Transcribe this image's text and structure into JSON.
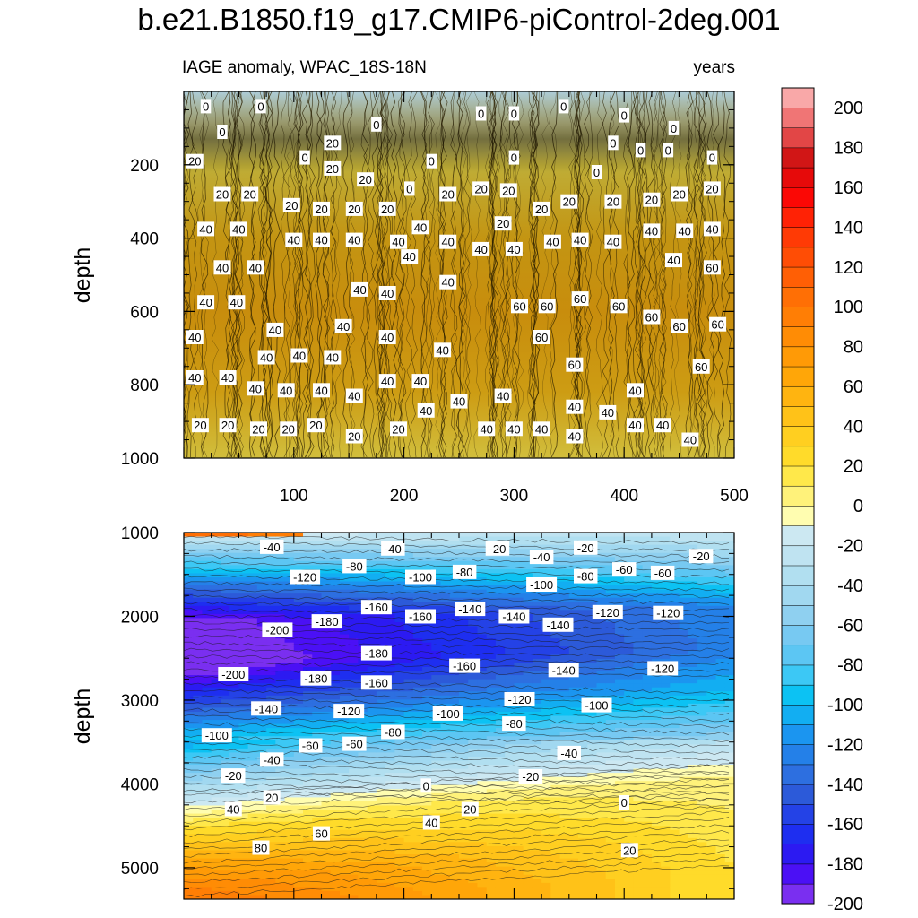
{
  "chart_data": {
    "type": "heatmap",
    "title": "b.e21.B1850.f19_g17.CMIP6-piControl-2deg.001",
    "subtitle_left": "IAGE anomaly, WPAC_18S-18N",
    "subtitle_right": "years",
    "xlabel": "",
    "ylabel": "depth",
    "x_range": [
      0,
      500
    ],
    "x_ticks": [
      "100",
      "200",
      "300",
      "400",
      "500"
    ],
    "panels": [
      {
        "name": "upper",
        "ylim": [
          0,
          1000
        ],
        "y_ticks": [
          "200",
          "400",
          "600",
          "800",
          "1000"
        ],
        "anomaly_profile": {
          "depth": [
            0,
            100,
            200,
            300,
            400,
            500,
            600,
            700,
            800,
            900,
            1000
          ],
          "value": [
            -2,
            2,
            15,
            28,
            38,
            44,
            46,
            45,
            40,
            34,
            26
          ]
        },
        "contour_labels": [
          {
            "text": "0",
            "x": 20,
            "y": 40
          },
          {
            "text": "0",
            "x": 70,
            "y": 40
          },
          {
            "text": "0",
            "x": 35,
            "y": 110
          },
          {
            "text": "0",
            "x": 175,
            "y": 90
          },
          {
            "text": "0",
            "x": 110,
            "y": 180
          },
          {
            "text": "0",
            "x": 270,
            "y": 60
          },
          {
            "text": "0",
            "x": 300,
            "y": 60
          },
          {
            "text": "0",
            "x": 345,
            "y": 40
          },
          {
            "text": "0",
            "x": 400,
            "y": 65
          },
          {
            "text": "0",
            "x": 445,
            "y": 100
          },
          {
            "text": "0",
            "x": 390,
            "y": 140
          },
          {
            "text": "0",
            "x": 415,
            "y": 160
          },
          {
            "text": "0",
            "x": 440,
            "y": 160
          },
          {
            "text": "0",
            "x": 480,
            "y": 180
          },
          {
            "text": "0",
            "x": 225,
            "y": 190
          },
          {
            "text": "0",
            "x": 300,
            "y": 180
          },
          {
            "text": "0",
            "x": 375,
            "y": 220
          },
          {
            "text": "0",
            "x": 205,
            "y": 265
          },
          {
            "text": "20",
            "x": 10,
            "y": 190
          },
          {
            "text": "20",
            "x": 135,
            "y": 140
          },
          {
            "text": "20",
            "x": 135,
            "y": 210
          },
          {
            "text": "20",
            "x": 165,
            "y": 240
          },
          {
            "text": "20",
            "x": 35,
            "y": 280
          },
          {
            "text": "20",
            "x": 60,
            "y": 280
          },
          {
            "text": "20",
            "x": 98,
            "y": 310
          },
          {
            "text": "20",
            "x": 125,
            "y": 320
          },
          {
            "text": "20",
            "x": 155,
            "y": 320
          },
          {
            "text": "20",
            "x": 185,
            "y": 320
          },
          {
            "text": "20",
            "x": 240,
            "y": 280
          },
          {
            "text": "20",
            "x": 270,
            "y": 265
          },
          {
            "text": "20",
            "x": 295,
            "y": 270
          },
          {
            "text": "20",
            "x": 325,
            "y": 320
          },
          {
            "text": "20",
            "x": 350,
            "y": 300
          },
          {
            "text": "20",
            "x": 390,
            "y": 300
          },
          {
            "text": "20",
            "x": 425,
            "y": 295
          },
          {
            "text": "20",
            "x": 450,
            "y": 280
          },
          {
            "text": "20",
            "x": 480,
            "y": 265
          },
          {
            "text": "20",
            "x": 290,
            "y": 360
          },
          {
            "text": "40",
            "x": 20,
            "y": 375
          },
          {
            "text": "40",
            "x": 50,
            "y": 375
          },
          {
            "text": "40",
            "x": 100,
            "y": 405
          },
          {
            "text": "40",
            "x": 125,
            "y": 405
          },
          {
            "text": "40",
            "x": 155,
            "y": 405
          },
          {
            "text": "40",
            "x": 195,
            "y": 410
          },
          {
            "text": "40",
            "x": 215,
            "y": 370
          },
          {
            "text": "40",
            "x": 240,
            "y": 410
          },
          {
            "text": "40",
            "x": 270,
            "y": 430
          },
          {
            "text": "40",
            "x": 300,
            "y": 430
          },
          {
            "text": "40",
            "x": 335,
            "y": 410
          },
          {
            "text": "40",
            "x": 360,
            "y": 405
          },
          {
            "text": "40",
            "x": 390,
            "y": 410
          },
          {
            "text": "40",
            "x": 425,
            "y": 380
          },
          {
            "text": "40",
            "x": 455,
            "y": 380
          },
          {
            "text": "40",
            "x": 480,
            "y": 375
          },
          {
            "text": "40",
            "x": 35,
            "y": 480
          },
          {
            "text": "40",
            "x": 65,
            "y": 480
          },
          {
            "text": "40",
            "x": 205,
            "y": 450
          },
          {
            "text": "40",
            "x": 240,
            "y": 520
          },
          {
            "text": "40",
            "x": 160,
            "y": 540
          },
          {
            "text": "40",
            "x": 185,
            "y": 550
          },
          {
            "text": "40",
            "x": 445,
            "y": 460
          },
          {
            "text": "40",
            "x": 20,
            "y": 575
          },
          {
            "text": "40",
            "x": 48,
            "y": 575
          },
          {
            "text": "40",
            "x": 10,
            "y": 670
          },
          {
            "text": "40",
            "x": 83,
            "y": 650
          },
          {
            "text": "40",
            "x": 145,
            "y": 640
          },
          {
            "text": "40",
            "x": 185,
            "y": 670
          },
          {
            "text": "40",
            "x": 75,
            "y": 725
          },
          {
            "text": "40",
            "x": 105,
            "y": 720
          },
          {
            "text": "40",
            "x": 135,
            "y": 725
          },
          {
            "text": "40",
            "x": 235,
            "y": 705
          },
          {
            "text": "40",
            "x": 10,
            "y": 780
          },
          {
            "text": "40",
            "x": 40,
            "y": 780
          },
          {
            "text": "40",
            "x": 65,
            "y": 810
          },
          {
            "text": "40",
            "x": 93,
            "y": 815
          },
          {
            "text": "40",
            "x": 125,
            "y": 815
          },
          {
            "text": "40",
            "x": 155,
            "y": 830
          },
          {
            "text": "40",
            "x": 185,
            "y": 790
          },
          {
            "text": "40",
            "x": 215,
            "y": 790
          },
          {
            "text": "40",
            "x": 220,
            "y": 870
          },
          {
            "text": "40",
            "x": 250,
            "y": 845
          },
          {
            "text": "40",
            "x": 290,
            "y": 830
          },
          {
            "text": "40",
            "x": 275,
            "y": 920
          },
          {
            "text": "40",
            "x": 300,
            "y": 920
          },
          {
            "text": "40",
            "x": 325,
            "y": 920
          },
          {
            "text": "40",
            "x": 355,
            "y": 860
          },
          {
            "text": "40",
            "x": 355,
            "y": 940
          },
          {
            "text": "40",
            "x": 385,
            "y": 875
          },
          {
            "text": "40",
            "x": 410,
            "y": 815
          },
          {
            "text": "40",
            "x": 410,
            "y": 910
          },
          {
            "text": "40",
            "x": 435,
            "y": 910
          },
          {
            "text": "40",
            "x": 460,
            "y": 950
          },
          {
            "text": "60",
            "x": 305,
            "y": 585
          },
          {
            "text": "60",
            "x": 330,
            "y": 585
          },
          {
            "text": "60",
            "x": 360,
            "y": 565
          },
          {
            "text": "60",
            "x": 395,
            "y": 585
          },
          {
            "text": "60",
            "x": 425,
            "y": 615
          },
          {
            "text": "60",
            "x": 450,
            "y": 640
          },
          {
            "text": "60",
            "x": 485,
            "y": 635
          },
          {
            "text": "60",
            "x": 480,
            "y": 480
          },
          {
            "text": "60",
            "x": 325,
            "y": 670
          },
          {
            "text": "60",
            "x": 355,
            "y": 745
          },
          {
            "text": "60",
            "x": 470,
            "y": 750
          },
          {
            "text": "20",
            "x": 15,
            "y": 910
          },
          {
            "text": "20",
            "x": 40,
            "y": 910
          },
          {
            "text": "20",
            "x": 68,
            "y": 920
          },
          {
            "text": "20",
            "x": 95,
            "y": 920
          },
          {
            "text": "20",
            "x": 120,
            "y": 910
          },
          {
            "text": "20",
            "x": 155,
            "y": 940
          },
          {
            "text": "20",
            "x": 195,
            "y": 920
          }
        ]
      },
      {
        "name": "lower",
        "ylim": [
          1000,
          5375
        ],
        "y_ticks": [
          "1000",
          "2000",
          "3000",
          "4000",
          "5000"
        ],
        "anomaly_profile": {
          "depth_at_x0": [
            1000,
            1500,
            2000,
            2500,
            3000,
            3500,
            4000,
            4300,
            4700,
            5000,
            5375
          ],
          "value_at_x0": [
            -20,
            -120,
            -200,
            -210,
            -150,
            -80,
            -20,
            20,
            60,
            90,
            110
          ],
          "depth_at_x500": [
            1000,
            1500,
            2000,
            2500,
            3000,
            3500,
            4000,
            4300,
            4700,
            5000,
            5375
          ],
          "value_at_x500": [
            -10,
            -60,
            -120,
            -125,
            -100,
            -60,
            -20,
            0,
            10,
            15,
            20
          ]
        },
        "contour_labels": [
          {
            "text": "-40",
            "x": 80,
            "y": 1170
          },
          {
            "text": "-40",
            "x": 190,
            "y": 1190
          },
          {
            "text": "-20",
            "x": 285,
            "y": 1190
          },
          {
            "text": "-40",
            "x": 325,
            "y": 1290
          },
          {
            "text": "-20",
            "x": 365,
            "y": 1180
          },
          {
            "text": "-20",
            "x": 470,
            "y": 1280
          },
          {
            "text": "-120",
            "x": 110,
            "y": 1530
          },
          {
            "text": "-80",
            "x": 155,
            "y": 1400
          },
          {
            "text": "-100",
            "x": 215,
            "y": 1530
          },
          {
            "text": "-80",
            "x": 255,
            "y": 1470
          },
          {
            "text": "-100",
            "x": 325,
            "y": 1620
          },
          {
            "text": "-80",
            "x": 365,
            "y": 1520
          },
          {
            "text": "-60",
            "x": 400,
            "y": 1440
          },
          {
            "text": "-60",
            "x": 435,
            "y": 1480
          },
          {
            "text": "-200",
            "x": 85,
            "y": 2160
          },
          {
            "text": "-180",
            "x": 130,
            "y": 2060
          },
          {
            "text": "-160",
            "x": 175,
            "y": 1890
          },
          {
            "text": "-160",
            "x": 215,
            "y": 2000
          },
          {
            "text": "-140",
            "x": 260,
            "y": 1910
          },
          {
            "text": "-140",
            "x": 300,
            "y": 2000
          },
          {
            "text": "-140",
            "x": 340,
            "y": 2100
          },
          {
            "text": "-120",
            "x": 385,
            "y": 1950
          },
          {
            "text": "-120",
            "x": 440,
            "y": 1960
          },
          {
            "text": "-180",
            "x": 175,
            "y": 2440
          },
          {
            "text": "-200",
            "x": 45,
            "y": 2690
          },
          {
            "text": "-180",
            "x": 120,
            "y": 2740
          },
          {
            "text": "-160",
            "x": 175,
            "y": 2790
          },
          {
            "text": "-160",
            "x": 255,
            "y": 2590
          },
          {
            "text": "-140",
            "x": 345,
            "y": 2640
          },
          {
            "text": "-120",
            "x": 435,
            "y": 2620
          },
          {
            "text": "-140",
            "x": 75,
            "y": 3100
          },
          {
            "text": "-120",
            "x": 150,
            "y": 3130
          },
          {
            "text": "-100",
            "x": 240,
            "y": 3160
          },
          {
            "text": "-120",
            "x": 305,
            "y": 2990
          },
          {
            "text": "-100",
            "x": 375,
            "y": 3060
          },
          {
            "text": "-80",
            "x": 300,
            "y": 3280
          },
          {
            "text": "-100",
            "x": 30,
            "y": 3420
          },
          {
            "text": "-60",
            "x": 115,
            "y": 3540
          },
          {
            "text": "-60",
            "x": 155,
            "y": 3520
          },
          {
            "text": "-80",
            "x": 190,
            "y": 3380
          },
          {
            "text": "-40",
            "x": 80,
            "y": 3710
          },
          {
            "text": "-40",
            "x": 350,
            "y": 3630
          },
          {
            "text": "-20",
            "x": 45,
            "y": 3900
          },
          {
            "text": "-20",
            "x": 315,
            "y": 3910
          },
          {
            "text": "0",
            "x": 220,
            "y": 4020
          },
          {
            "text": "0",
            "x": 400,
            "y": 4220
          },
          {
            "text": "20",
            "x": 80,
            "y": 4160
          },
          {
            "text": "20",
            "x": 260,
            "y": 4300
          },
          {
            "text": "40",
            "x": 45,
            "y": 4300
          },
          {
            "text": "40",
            "x": 225,
            "y": 4460
          },
          {
            "text": "60",
            "x": 125,
            "y": 4590
          },
          {
            "text": "80",
            "x": 70,
            "y": 4760
          },
          {
            "text": "20",
            "x": 405,
            "y": 4790
          }
        ]
      }
    ],
    "colorbar": {
      "ticks": [
        "200",
        "180",
        "160",
        "140",
        "120",
        "100",
        "80",
        "60",
        "40",
        "20",
        "0",
        "-20",
        "-40",
        "-60",
        "-80",
        "-100",
        "-120",
        "-140",
        "-160",
        "-180",
        "-200"
      ],
      "boundaries": [
        -200,
        -190,
        -180,
        -170,
        -160,
        -150,
        -140,
        -130,
        -120,
        -110,
        -100,
        -90,
        -80,
        -70,
        -60,
        -50,
        -40,
        -30,
        -20,
        -10,
        0,
        10,
        20,
        30,
        40,
        50,
        60,
        70,
        80,
        90,
        100,
        110,
        120,
        130,
        140,
        150,
        160,
        170,
        180,
        190,
        200
      ],
      "colors": [
        "#7a2ff0",
        "#4b10f5",
        "#2c1af2",
        "#1e2ef0",
        "#2442e6",
        "#2c5ad9",
        "#2d6fe0",
        "#2480e8",
        "#1b95f0",
        "#12aef2",
        "#0cc2f3",
        "#3cc8f5",
        "#5cc6f3",
        "#77c9f2",
        "#8fd0f0",
        "#a1d8f0",
        "#b1dff0",
        "#bfe3f1",
        "#cce8f2",
        "#fffdb0",
        "#fff27a",
        "#ffe84a",
        "#ffdb2a",
        "#ffcf20",
        "#ffc218",
        "#ffb410",
        "#ffa608",
        "#ff9a06",
        "#ff8c05",
        "#ff7e05",
        "#ff6f05",
        "#ff5f05",
        "#ff4d05",
        "#ff3a05",
        "#ff2205",
        "#fb0805",
        "#e60a0a",
        "#d11616",
        "#e24646",
        "#f07575",
        "#f9a8a8"
      ]
    }
  }
}
